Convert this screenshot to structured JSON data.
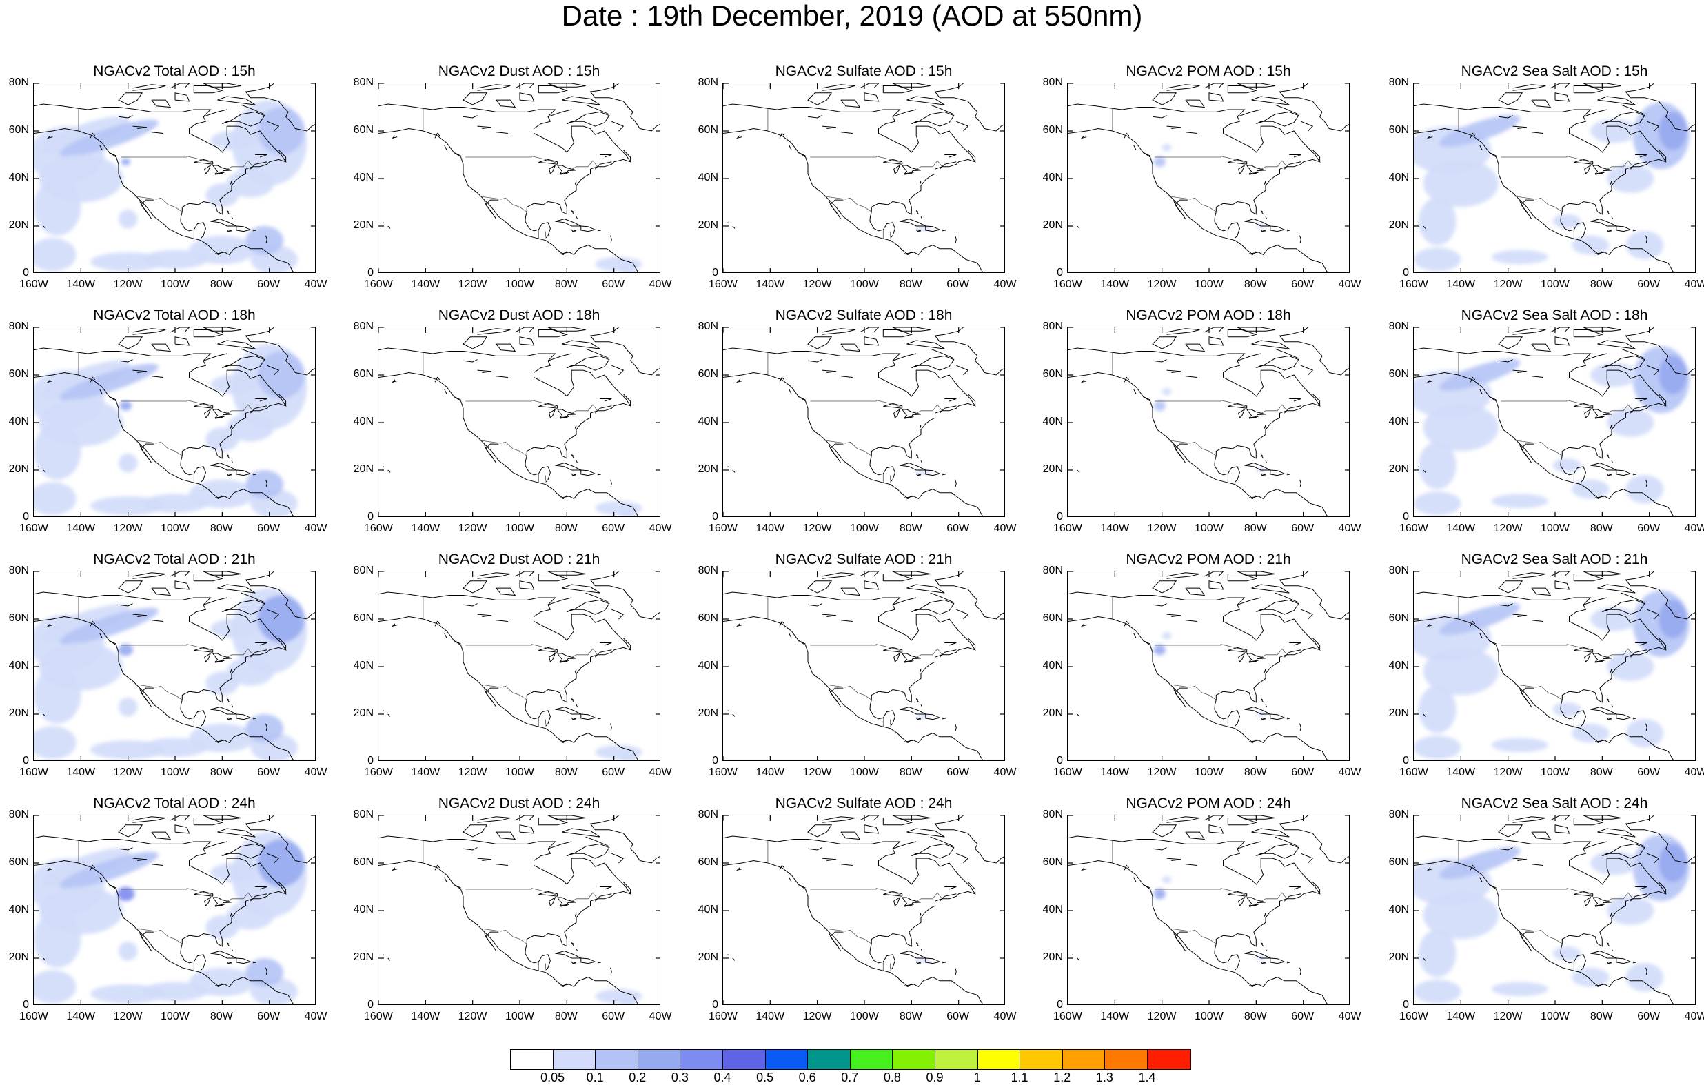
{
  "title": "Date : 19th December, 2019 (AOD at 550nm)",
  "map": {
    "projection": "cylindrical-equidistant",
    "lon_range": [
      -160,
      -40
    ],
    "lat_range": [
      0,
      80
    ],
    "x_ticks": [
      "160W",
      "140W",
      "120W",
      "100W",
      "80W",
      "60W",
      "40W"
    ],
    "y_ticks": [
      "80N",
      "60N",
      "40N",
      "20N",
      "0"
    ]
  },
  "panels": [
    {
      "title": "NGACv2 Total AOD : 15h",
      "species": "total",
      "hour": "15h"
    },
    {
      "title": "NGACv2 Dust AOD : 15h",
      "species": "dust",
      "hour": "15h"
    },
    {
      "title": "NGACv2 Sulfate AOD : 15h",
      "species": "sulfate",
      "hour": "15h"
    },
    {
      "title": "NGACv2 POM AOD : 15h",
      "species": "pom",
      "hour": "15h"
    },
    {
      "title": "NGACv2 Sea Salt AOD : 15h",
      "species": "seasalt",
      "hour": "15h"
    },
    {
      "title": "NGACv2 Total AOD : 18h",
      "species": "total",
      "hour": "18h"
    },
    {
      "title": "NGACv2 Dust AOD : 18h",
      "species": "dust",
      "hour": "18h"
    },
    {
      "title": "NGACv2 Sulfate AOD : 18h",
      "species": "sulfate",
      "hour": "18h"
    },
    {
      "title": "NGACv2 POM AOD : 18h",
      "species": "pom",
      "hour": "18h"
    },
    {
      "title": "NGACv2 Sea Salt AOD : 18h",
      "species": "seasalt",
      "hour": "18h"
    },
    {
      "title": "NGACv2 Total AOD : 21h",
      "species": "total",
      "hour": "21h"
    },
    {
      "title": "NGACv2 Dust AOD : 21h",
      "species": "dust",
      "hour": "21h"
    },
    {
      "title": "NGACv2 Sulfate AOD : 21h",
      "species": "sulfate",
      "hour": "21h"
    },
    {
      "title": "NGACv2 POM AOD : 21h",
      "species": "pom",
      "hour": "21h"
    },
    {
      "title": "NGACv2 Sea Salt AOD : 21h",
      "species": "seasalt",
      "hour": "21h"
    },
    {
      "title": "NGACv2 Total AOD : 24h",
      "species": "total",
      "hour": "24h"
    },
    {
      "title": "NGACv2 Dust AOD : 24h",
      "species": "dust",
      "hour": "24h"
    },
    {
      "title": "NGACv2 Sulfate AOD : 24h",
      "species": "sulfate",
      "hour": "24h"
    },
    {
      "title": "NGACv2 POM AOD : 24h",
      "species": "pom",
      "hour": "24h"
    },
    {
      "title": "NGACv2 Sea Salt  AOD : 24h",
      "species": "seasalt",
      "hour": "24h"
    }
  ],
  "colorbar": {
    "colors": [
      "#ffffff",
      "#d2dcfa",
      "#b4c3f5",
      "#96aaf0",
      "#7d8cf0",
      "#5f64e6",
      "#0a5af5",
      "#00968c",
      "#46f01e",
      "#82f000",
      "#bef03c",
      "#ffff00",
      "#ffc800",
      "#ffa000",
      "#ff7800",
      "#ff1e00"
    ],
    "labels": [
      "0.05",
      "0.1",
      "0.2",
      "0.3",
      "0.4",
      "0.5",
      "0.6",
      "0.7",
      "0.8",
      "0.9",
      "1",
      "1.1",
      "1.2",
      "1.3",
      "1.4"
    ]
  }
}
